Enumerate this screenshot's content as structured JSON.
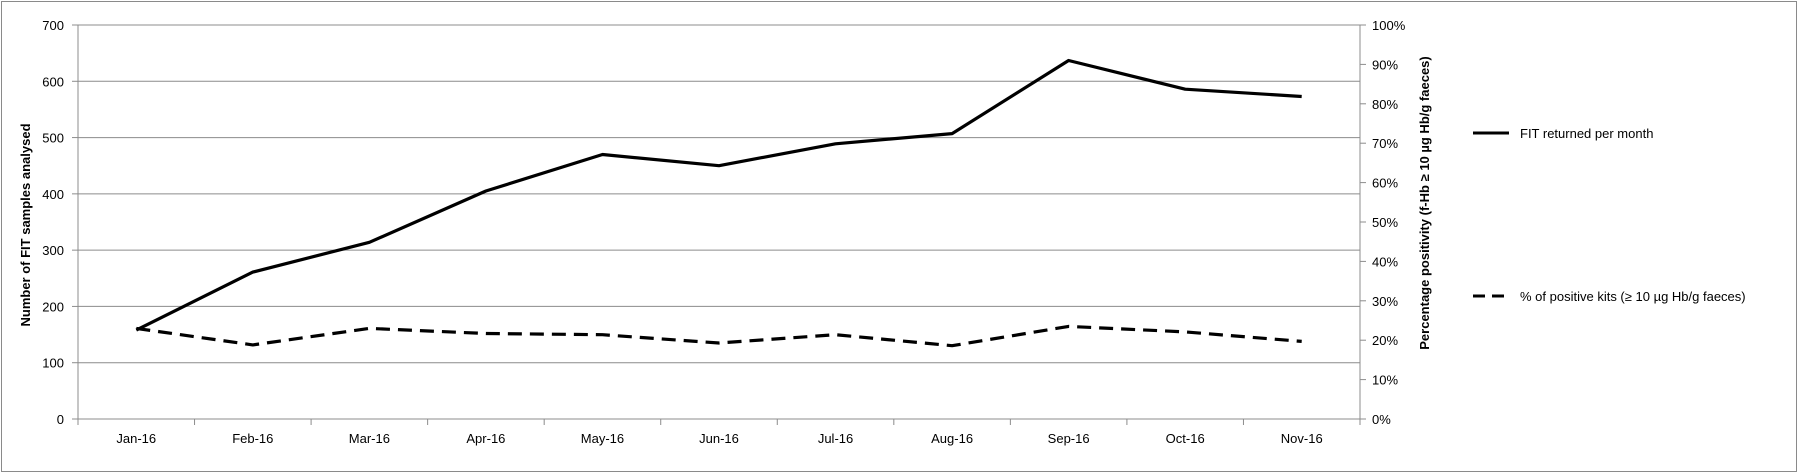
{
  "chart_data": {
    "type": "line",
    "categories": [
      "Jan-16",
      "Feb-16",
      "Mar-16",
      "Apr-16",
      "May-16",
      "Jun-16",
      "Jul-16",
      "Aug-16",
      "Sep-16",
      "Oct-16",
      "Nov-16"
    ],
    "ylabel": "Number of FIT samples analysed",
    "y2label": "Percentage positivity (f-Hb ≥  10 µg Hb/g faeces)",
    "ylim": [
      0,
      700
    ],
    "y2lim": [
      0,
      100
    ],
    "yticks": [
      "0",
      "100",
      "200",
      "300",
      "400",
      "500",
      "600",
      "700"
    ],
    "y2ticks": [
      "0%",
      "10%",
      "20%",
      "30%",
      "40%",
      "50%",
      "60%",
      "70%",
      "80%",
      "90%",
      "100%"
    ],
    "grid": true,
    "legend_position": "right",
    "series": [
      {
        "name": "FIT returned per month",
        "axis": "left",
        "style": "solid",
        "color": "#000000",
        "values": [
          158,
          261,
          314,
          405,
          470,
          450,
          489,
          507,
          637,
          586,
          573
        ]
      },
      {
        "name": "% of positive kits (≥ 10 µg Hb/g faeces)",
        "axis": "right",
        "style": "dashed",
        "color": "#000000",
        "values": [
          23.0,
          18.8,
          23.0,
          21.7,
          21.4,
          19.3,
          21.4,
          18.6,
          23.5,
          22.1,
          19.7
        ]
      }
    ]
  }
}
